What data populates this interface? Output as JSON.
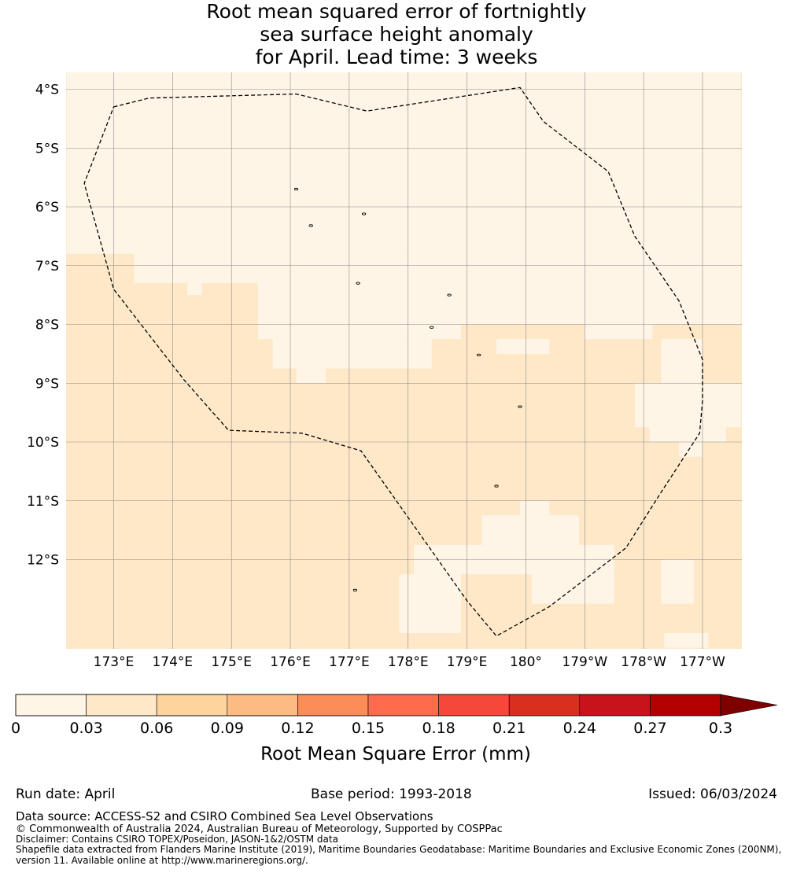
{
  "title": {
    "line1": "Root mean squared error of fortnightly",
    "line2": "sea surface height anomaly",
    "line3": "for April. Lead time: 3 weeks"
  },
  "map": {
    "lon_ticks": [
      "173°E",
      "174°E",
      "175°E",
      "176°E",
      "177°E",
      "178°E",
      "179°E",
      "180°",
      "179°W",
      "178°W",
      "177°W"
    ],
    "lon_values": [
      173,
      174,
      175,
      176,
      177,
      178,
      179,
      180,
      181,
      182,
      183
    ],
    "lat_ticks": [
      "4°S",
      "5°S",
      "6°S",
      "7°S",
      "8°S",
      "9°S",
      "10°S",
      "11°S",
      "12°S"
    ],
    "lat_values": [
      -4,
      -5,
      -6,
      -7,
      -8,
      -9,
      -10,
      -11,
      -12
    ],
    "lon_range": [
      172.2,
      183.65
    ],
    "lat_range": [
      -13.5,
      -3.7
    ],
    "rmse_field": {
      "units": "mm",
      "cell_size_deg": 0.25,
      "dominant_range": [
        0.03,
        0.06
      ],
      "low_range": [
        0,
        0.03
      ],
      "low_regions_lonlat": [
        {
          "lon": [
            172.2,
            183.65
          ],
          "lat": [
            -6.8,
            -3.7
          ]
        },
        {
          "lon": [
            173.35,
            175.45
          ],
          "lat": [
            -7.3,
            -6.8
          ]
        },
        {
          "lon": [
            174.25,
            174.5
          ],
          "lat": [
            -7.5,
            -7.3
          ]
        },
        {
          "lon": [
            175.45,
            178.9
          ],
          "lat": [
            -8.25,
            -6.8
          ]
        },
        {
          "lon": [
            178.9,
            183.65
          ],
          "lat": [
            -8.0,
            -6.8
          ]
        },
        {
          "lon": [
            175.7,
            178.4
          ],
          "lat": [
            -8.75,
            -8.25
          ]
        },
        {
          "lon": [
            176.1,
            176.6
          ],
          "lat": [
            -9.0,
            -8.75
          ]
        },
        {
          "lon": [
            179.5,
            180.4
          ],
          "lat": [
            -8.5,
            -8.25
          ]
        },
        {
          "lon": [
            181.0,
            182.15
          ],
          "lat": [
            -8.25,
            -8.0
          ]
        },
        {
          "lon": [
            182.3,
            183.0
          ],
          "lat": [
            -9.0,
            -8.25
          ]
        },
        {
          "lon": [
            181.85,
            183.65
          ],
          "lat": [
            -9.75,
            -9.0
          ]
        },
        {
          "lon": [
            182.1,
            183.4
          ],
          "lat": [
            -10.0,
            -9.75
          ]
        },
        {
          "lon": [
            182.6,
            183.0
          ],
          "lat": [
            -10.25,
            -10.0
          ]
        },
        {
          "lon": [
            179.25,
            180.9
          ],
          "lat": [
            -11.75,
            -11.25
          ]
        },
        {
          "lon": [
            179.9,
            180.4
          ],
          "lat": [
            -11.25,
            -11.0
          ]
        },
        {
          "lon": [
            178.1,
            181.5
          ],
          "lat": [
            -12.25,
            -11.75
          ]
        },
        {
          "lon": [
            177.85,
            178.9
          ],
          "lat": [
            -13.25,
            -12.25
          ]
        },
        {
          "lon": [
            180.1,
            181.5
          ],
          "lat": [
            -12.75,
            -12.25
          ]
        },
        {
          "lon": [
            182.3,
            182.85
          ],
          "lat": [
            -12.75,
            -12.0
          ]
        },
        {
          "lon": [
            182.35,
            183.1
          ],
          "lat": [
            -13.5,
            -13.25
          ]
        }
      ]
    },
    "eez_boundary_lonlat": [
      [
        173.0,
        -4.3
      ],
      [
        173.6,
        -4.15
      ],
      [
        176.1,
        -4.08
      ],
      [
        177.3,
        -4.37
      ],
      [
        179.9,
        -3.97
      ],
      [
        180.3,
        -4.55
      ],
      [
        181.4,
        -5.4
      ],
      [
        181.85,
        -6.5
      ],
      [
        182.6,
        -7.6
      ],
      [
        183.0,
        -8.6
      ],
      [
        183.0,
        -9.3
      ],
      [
        182.95,
        -9.85
      ],
      [
        182.3,
        -10.85
      ],
      [
        181.7,
        -11.8
      ],
      [
        180.4,
        -12.8
      ],
      [
        179.5,
        -13.3
      ],
      [
        179.0,
        -12.7
      ],
      [
        177.2,
        -10.15
      ],
      [
        176.2,
        -9.85
      ],
      [
        174.95,
        -9.8
      ],
      [
        174.2,
        -8.95
      ],
      [
        173.0,
        -7.4
      ],
      [
        172.5,
        -5.6
      ],
      [
        173.0,
        -4.3
      ]
    ],
    "islands_lonlat": [
      [
        176.1,
        -5.7
      ],
      [
        177.25,
        -6.12
      ],
      [
        176.35,
        -6.32
      ],
      [
        177.15,
        -7.3
      ],
      [
        178.7,
        -7.5
      ],
      [
        178.4,
        -8.05
      ],
      [
        179.2,
        -8.52
      ],
      [
        179.9,
        -9.4
      ],
      [
        179.5,
        -10.75
      ],
      [
        177.1,
        -12.52
      ]
    ]
  },
  "colorbar": {
    "tick_labels": [
      "0",
      "0.03",
      "0.06",
      "0.09",
      "0.12",
      "0.15",
      "0.18",
      "0.21",
      "0.24",
      "0.27",
      "0.3"
    ],
    "colors": [
      "#fff5e6",
      "#fee8c8",
      "#fdd49e",
      "#fdbb84",
      "#fc8d59",
      "#fe6b4d",
      "#f5473a",
      "#d7301f",
      "#c8131a",
      "#b30000",
      "#7f0000"
    ],
    "label": "Root Mean Square Error (mm)"
  },
  "footer": {
    "run_date": "Run date: April",
    "base_period": "Base period: 1993-2018",
    "issued": "Issued: 06/03/2024",
    "data_source": "Data source: ACCESS-S2 and CSIRO Combined Sea Level Observations",
    "copyright": "© Commonwealth of Australia 2024, Australian Bureau of Meteorology, Supported by COSPPac",
    "disclaimer": "Disclaimer: Contains CSIRO TOPEX/Poseidon, JASON-1&2/OSTM data",
    "shapefile_line1": "Shapefile data extracted from Flanders Marine Institute (2019), Maritime Boundaries Geodatabase: Maritime Boundaries and Exclusive Economic Zones (200NM),",
    "shapefile_line2": "version 11. Available online at http://www.marineregions.org/."
  }
}
